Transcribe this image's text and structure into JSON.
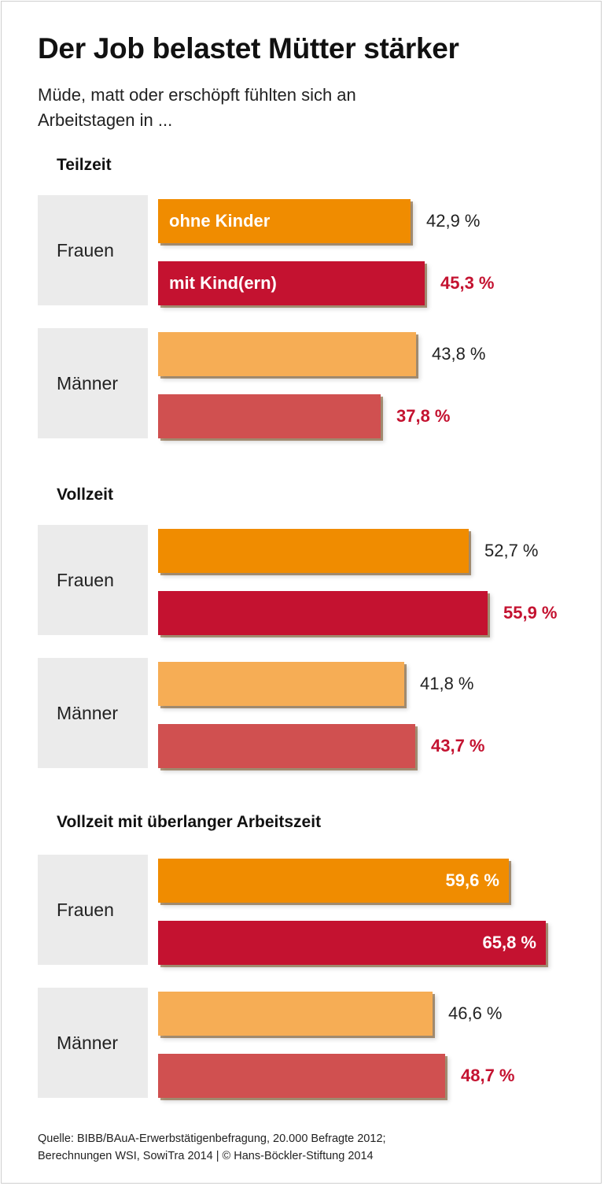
{
  "title": "Der Job belastet Mütter stärker",
  "subtitle": "Müde, matt oder erschöpft fühlten sich an Arbeitstagen in ...",
  "source_line1": "Quelle: BIBB/BAuA-Erwerbstätigenbefragung, 20.000 Befragte 2012;",
  "source_line2": "Berechnungen WSI, SowiTra 2014 | © Hans-Böckler-Stiftung 2014",
  "chart_data": {
    "type": "bar",
    "orientation": "horizontal",
    "title": "Der Job belastet Mütter stärker",
    "subtitle": "Müde, matt oder erschöpft fühlten sich an Arbeitstagen in ...",
    "unit": "%",
    "series_legend": [
      "ohne Kinder",
      "mit Kind(ern)"
    ],
    "colors": {
      "frauen_ohne": "#f08c00",
      "frauen_mit": "#c41230",
      "maenner_ohne": "#f6ad55",
      "maenner_mit": "#d05050",
      "red_text": "#c41230",
      "group_bg": "#ebebeb"
    },
    "sections": [
      {
        "title": "Teilzeit",
        "groups": [
          {
            "label": "Frauen",
            "bars": [
              {
                "series": "ohne Kinder",
                "value": 42.9,
                "display": "42,9 %"
              },
              {
                "series": "mit Kind(ern)",
                "value": 45.3,
                "display": "45,3 %"
              }
            ]
          },
          {
            "label": "Männer",
            "bars": [
              {
                "series": "ohne Kinder",
                "value": 43.8,
                "display": "43,8 %"
              },
              {
                "series": "mit Kind(ern)",
                "value": 37.8,
                "display": "37,8 %"
              }
            ]
          }
        ]
      },
      {
        "title": "Vollzeit",
        "groups": [
          {
            "label": "Frauen",
            "bars": [
              {
                "series": "ohne Kinder",
                "value": 52.7,
                "display": "52,7 %"
              },
              {
                "series": "mit Kind(ern)",
                "value": 55.9,
                "display": "55,9 %"
              }
            ]
          },
          {
            "label": "Männer",
            "bars": [
              {
                "series": "ohne Kinder",
                "value": 41.8,
                "display": "41,8 %"
              },
              {
                "series": "mit Kind(ern)",
                "value": 43.7,
                "display": "43,7 %"
              }
            ]
          }
        ]
      },
      {
        "title": "Vollzeit mit überlanger Arbeitszeit",
        "groups": [
          {
            "label": "Frauen",
            "bars": [
              {
                "series": "ohne Kinder",
                "value": 59.6,
                "display": "59,6 %"
              },
              {
                "series": "mit Kind(ern)",
                "value": 65.8,
                "display": "65,8 %"
              }
            ]
          },
          {
            "label": "Männer",
            "bars": [
              {
                "series": "ohne Kinder",
                "value": 46.6,
                "display": "46,6 %"
              },
              {
                "series": "mit Kind(ern)",
                "value": 48.7,
                "display": "48,7 %"
              }
            ]
          }
        ]
      }
    ]
  }
}
